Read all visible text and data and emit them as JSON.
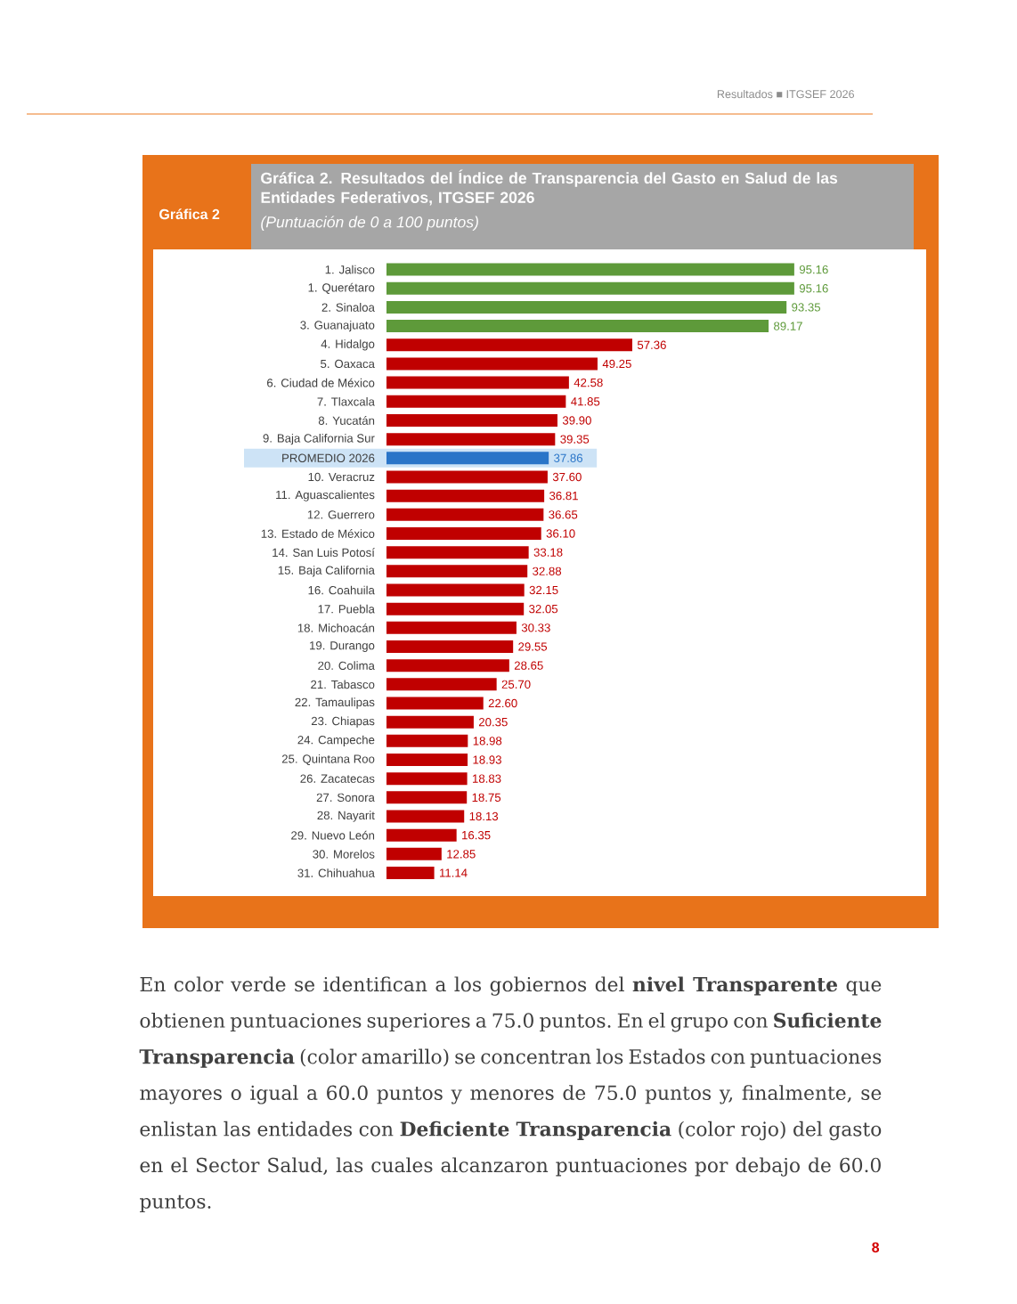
{
  "chart_data": {
    "type": "bar",
    "orientation": "horizontal",
    "title": "Gráfica 2. Resultados del Índice de Transparencia del Gasto en Salud de las Entidades Federativos, ITGSEF 2026",
    "subtitle": "(Puntuación de 0 a 100 puntos)",
    "categories": [
      "1. Jalisco",
      "1. Querétaro",
      "2. Sinaloa",
      "3. Guanajuato",
      "4. Hidalgo",
      "5. Oaxaca",
      "6. Ciudad de México",
      "7. Tlaxcala",
      "8. Yucatán",
      "9. Baja California Sur",
      "PROMEDIO 2026",
      "10. Veracruz",
      "11. Aguascalientes",
      "12. Guerrero",
      "13. Estado de México",
      "14. San Luis Potosí",
      "15. Baja California",
      "16. Coahuila",
      "17. Puebla",
      "18. Michoacán",
      "19. Durango",
      "20. Colima",
      "21. Tabasco",
      "22. Tamaulipas",
      "23. Chiapas",
      "24. Campeche",
      "25. Quintana Roo",
      "26. Zacatecas",
      "27. Sonora",
      "28. Nayarit",
      "29. Nuevo León",
      "30. Morelos",
      "31. Chihuahua"
    ],
    "values": [
      95.16,
      95.16,
      93.35,
      89.17,
      57.36,
      49.25,
      42.58,
      41.85,
      39.9,
      39.35,
      37.86,
      37.6,
      36.81,
      36.65,
      36.1,
      33.18,
      32.88,
      32.15,
      32.05,
      30.33,
      29.55,
      28.65,
      25.7,
      22.6,
      20.35,
      18.98,
      18.93,
      18.83,
      18.75,
      18.13,
      16.35,
      12.85,
      11.14
    ],
    "value_labels": [
      "95.16",
      "95.16",
      "93.35",
      "89.17",
      "57.36",
      "49.25",
      "42.58",
      "41.85",
      "39.90",
      "39.35",
      "37.86",
      "37.60",
      "36.81",
      "36.65",
      "36.10",
      "33.18",
      "32.88",
      "32.15",
      "32.05",
      "30.33",
      "29.55",
      "28.65",
      "25.70",
      "22.60",
      "20.35",
      "18.98",
      "18.93",
      "18.83",
      "18.75",
      "18.13",
      "16.35",
      "12.85",
      "11.14"
    ],
    "colors": [
      "#5e9a3a",
      "#5e9a3a",
      "#5e9a3a",
      "#5e9a3a",
      "#c00000",
      "#c00000",
      "#c00000",
      "#c00000",
      "#c00000",
      "#c00000",
      "#2a75c8",
      "#c00000",
      "#c00000",
      "#c00000",
      "#c00000",
      "#c00000",
      "#c00000",
      "#c00000",
      "#c00000",
      "#c00000",
      "#c00000",
      "#c00000",
      "#c00000",
      "#c00000",
      "#c00000",
      "#c00000",
      "#c00000",
      "#c00000",
      "#c00000",
      "#c00000",
      "#c00000",
      "#c00000",
      "#c00000"
    ],
    "tick_labels": "y",
    "bands": [
      {
        "axis": "y",
        "from": "PROMEDIO 2026",
        "to": "PROMEDIO 2026",
        "color": "#cde3f6"
      }
    ],
    "annotations": [
      "Gráfica 2",
      "Resultados ■ ITGSEF 2026",
      "En color verde se identifican a los gobiernos del **nivel Transparente** que obtienen puntuaciones superiores a 75.0 puntos. En el grupo con **Suficiente Transparencia** (color amarillo) se concentran los Estados con puntuaciones mayores o igual a 60.0 puntos y menores de 75.0 puntos y, finalmente, se enlistan las entidades con **Deficiente Transparencia** (color rojo) del gasto en el Sector Salud, las cuales alcanzaron puntuaciones por debajo de 60.0 puntos.",
      "8"
    ]
  }
}
